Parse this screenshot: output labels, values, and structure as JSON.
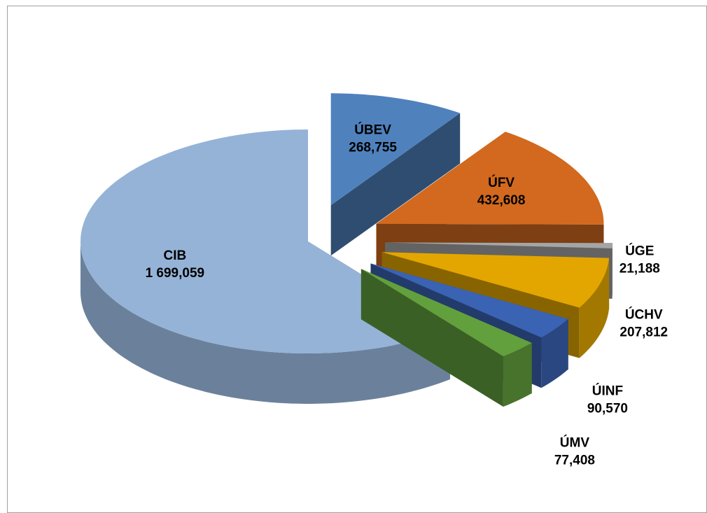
{
  "chart_data": {
    "type": "pie",
    "categories": [
      "ÚBEV",
      "ÚFV",
      "ÚGE",
      "ÚCHV",
      "ÚINF",
      "ÚMV",
      "CIB"
    ],
    "values": [
      268.755,
      432.608,
      21.188,
      207.812,
      90.57,
      77.408,
      1699.059
    ],
    "value_labels": [
      "268,755",
      "432,608",
      "21,188",
      "207,812",
      "90,570",
      "77,408",
      "1 699,059"
    ],
    "colors": [
      "#4f81bd",
      "#d2691e",
      "#a5a5a5",
      "#e3a600",
      "#3b63b3",
      "#62a03d",
      "#95b3d7"
    ]
  }
}
